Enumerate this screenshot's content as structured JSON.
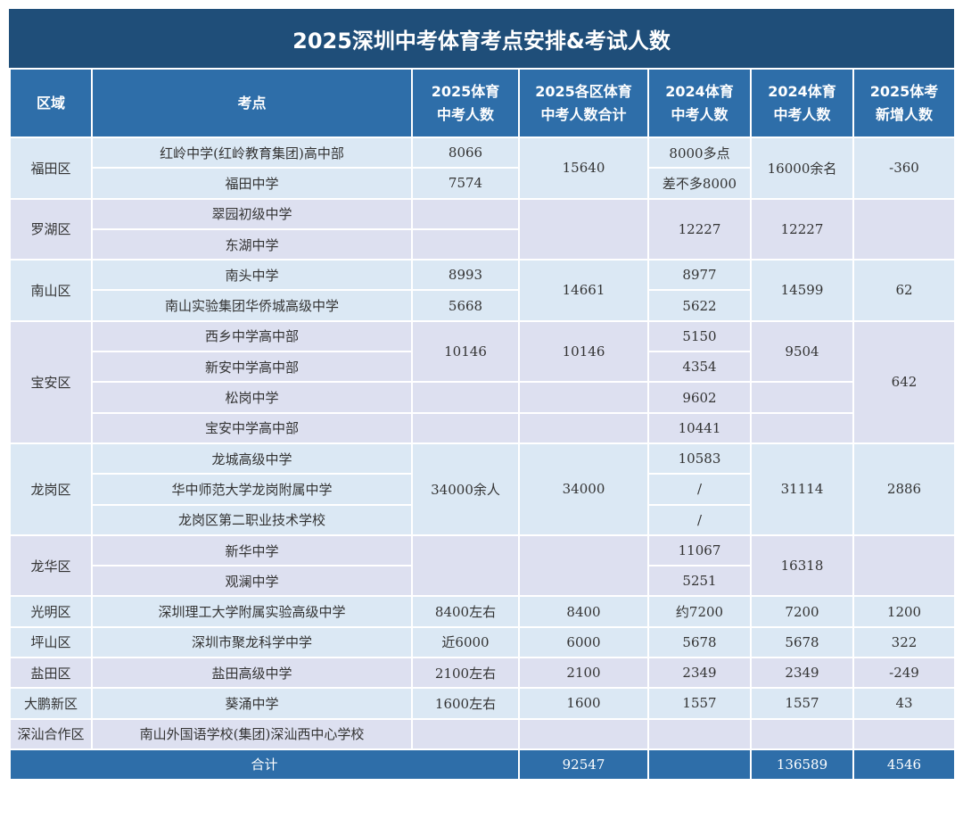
{
  "title": "2025深圳中考体育考点安排&考试人数",
  "table": {
    "header": [
      [
        "区域"
      ],
      [
        "考点"
      ],
      [
        "2025体育",
        "中考人数"
      ],
      [
        "2025各区体育",
        "中考人数合计"
      ],
      [
        "2024体育",
        "中考人数"
      ],
      [
        "2024体育",
        "中考人数"
      ],
      [
        "2025体考",
        "新增人数"
      ]
    ],
    "rows": [
      [
        "福田区",
        "红岭中学(红岭教育集团)高中部",
        "8066",
        "15640",
        "8000多点",
        "16000余名",
        "-360"
      ],
      [
        "福田中学",
        "7574",
        "差不多8000"
      ],
      [
        "罗湖区",
        "翠园初级中学",
        "12227",
        "12227"
      ],
      [
        "东湖中学"
      ],
      [
        "南山区",
        "南头中学",
        "8993",
        "14661",
        "8977",
        "14599",
        "62"
      ],
      [
        "南山实验集团华侨城高级中学",
        "5668",
        "5622"
      ],
      [
        "宝安区",
        "西乡中学高中部",
        "10146",
        "10146",
        "5150",
        "9504",
        "642"
      ],
      [
        "新安中学高中部",
        "4354"
      ],
      [
        "松岗中学",
        "9602"
      ],
      [
        "宝安中学高中部",
        "10441"
      ],
      [
        "龙岗区",
        "龙城高级中学",
        "34000余人",
        "34000",
        "10583",
        "31114",
        "2886"
      ],
      [
        "华中师范大学龙岗附属中学",
        "/"
      ],
      [
        "龙岗区第二职业技术学校",
        "/"
      ],
      [
        "龙华区",
        "新华中学",
        "11067",
        "16318"
      ],
      [
        "观澜中学",
        "5251"
      ],
      [
        "光明区",
        "深圳理工大学附属实验高级中学",
        "8400左右",
        "8400",
        "约7200",
        "7200",
        "1200"
      ],
      [
        "坪山区",
        "深圳市聚龙科学中学",
        "近6000",
        "6000",
        "5678",
        "5678",
        "322"
      ],
      [
        "盐田区",
        "盐田高级中学",
        "2100左右",
        "2100",
        "2349",
        "2349",
        "-249"
      ],
      [
        "大鹏新区",
        "葵涌中学",
        "1600左右",
        "1600",
        "1557",
        "1557",
        "43"
      ],
      [
        "深汕合作区",
        "南山外国语学校(集团)深汕西中心学校"
      ]
    ],
    "footer": [
      "合计",
      "92547",
      "136589",
      "4546"
    ]
  }
}
